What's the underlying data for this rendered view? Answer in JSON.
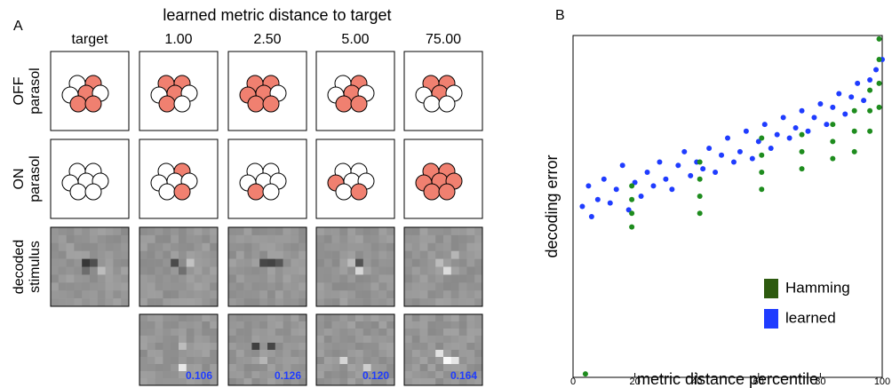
{
  "panel_a": {
    "label": "A",
    "title": "learned metric distance to target",
    "columns": [
      "target",
      "1.00",
      "2.50",
      "5.00",
      "75.00"
    ],
    "rows": [
      [
        "OFF",
        "parasol"
      ],
      [
        "ON",
        "parasol"
      ],
      [
        "decoded",
        "stimulus"
      ]
    ],
    "errors": [
      "0.106",
      "0.126",
      "0.120",
      "0.164"
    ]
  },
  "chart_data": {
    "type": "scatter",
    "panel_label": "B",
    "x_label": "metric distance percentile",
    "y_label": "decoding error",
    "xlim": [
      0,
      100
    ],
    "xticks": [
      0,
      20,
      40,
      60,
      80,
      100
    ],
    "ylim": [
      0,
      1
    ],
    "legend": "lower right",
    "series": [
      {
        "name": "Hamming",
        "color": "#1e8c1e",
        "x": [
          4,
          19,
          19,
          19,
          19,
          41,
          41,
          41,
          41,
          61,
          61,
          61,
          61,
          74,
          74,
          74,
          84,
          84,
          84,
          91,
          91,
          91,
          96,
          96,
          96,
          99,
          99,
          99,
          99
        ],
        "values": [
          0.01,
          0.44,
          0.48,
          0.52,
          0.56,
          0.48,
          0.53,
          0.58,
          0.63,
          0.55,
          0.6,
          0.65,
          0.7,
          0.61,
          0.66,
          0.71,
          0.64,
          0.69,
          0.74,
          0.66,
          0.72,
          0.78,
          0.72,
          0.78,
          0.84,
          0.79,
          0.86,
          0.93,
          0.99
        ]
      },
      {
        "name": "learned",
        "color": "#1f3cff",
        "x": [
          3,
          5,
          6,
          8,
          10,
          12,
          14,
          16,
          18,
          20,
          22,
          24,
          26,
          28,
          30,
          32,
          34,
          36,
          38,
          40,
          42,
          44,
          46,
          48,
          50,
          52,
          54,
          56,
          58,
          60,
          62,
          64,
          66,
          68,
          70,
          72,
          74,
          76,
          78,
          80,
          82,
          84,
          86,
          88,
          90,
          92,
          94,
          96,
          98,
          100
        ],
        "values": [
          0.5,
          0.56,
          0.47,
          0.52,
          0.58,
          0.51,
          0.55,
          0.62,
          0.49,
          0.57,
          0.53,
          0.6,
          0.56,
          0.63,
          0.58,
          0.55,
          0.62,
          0.66,
          0.59,
          0.63,
          0.61,
          0.67,
          0.6,
          0.65,
          0.7,
          0.63,
          0.66,
          0.72,
          0.64,
          0.69,
          0.74,
          0.67,
          0.71,
          0.76,
          0.7,
          0.73,
          0.78,
          0.72,
          0.76,
          0.8,
          0.74,
          0.79,
          0.83,
          0.77,
          0.82,
          0.86,
          0.81,
          0.87,
          0.9,
          0.93
        ]
      }
    ]
  }
}
